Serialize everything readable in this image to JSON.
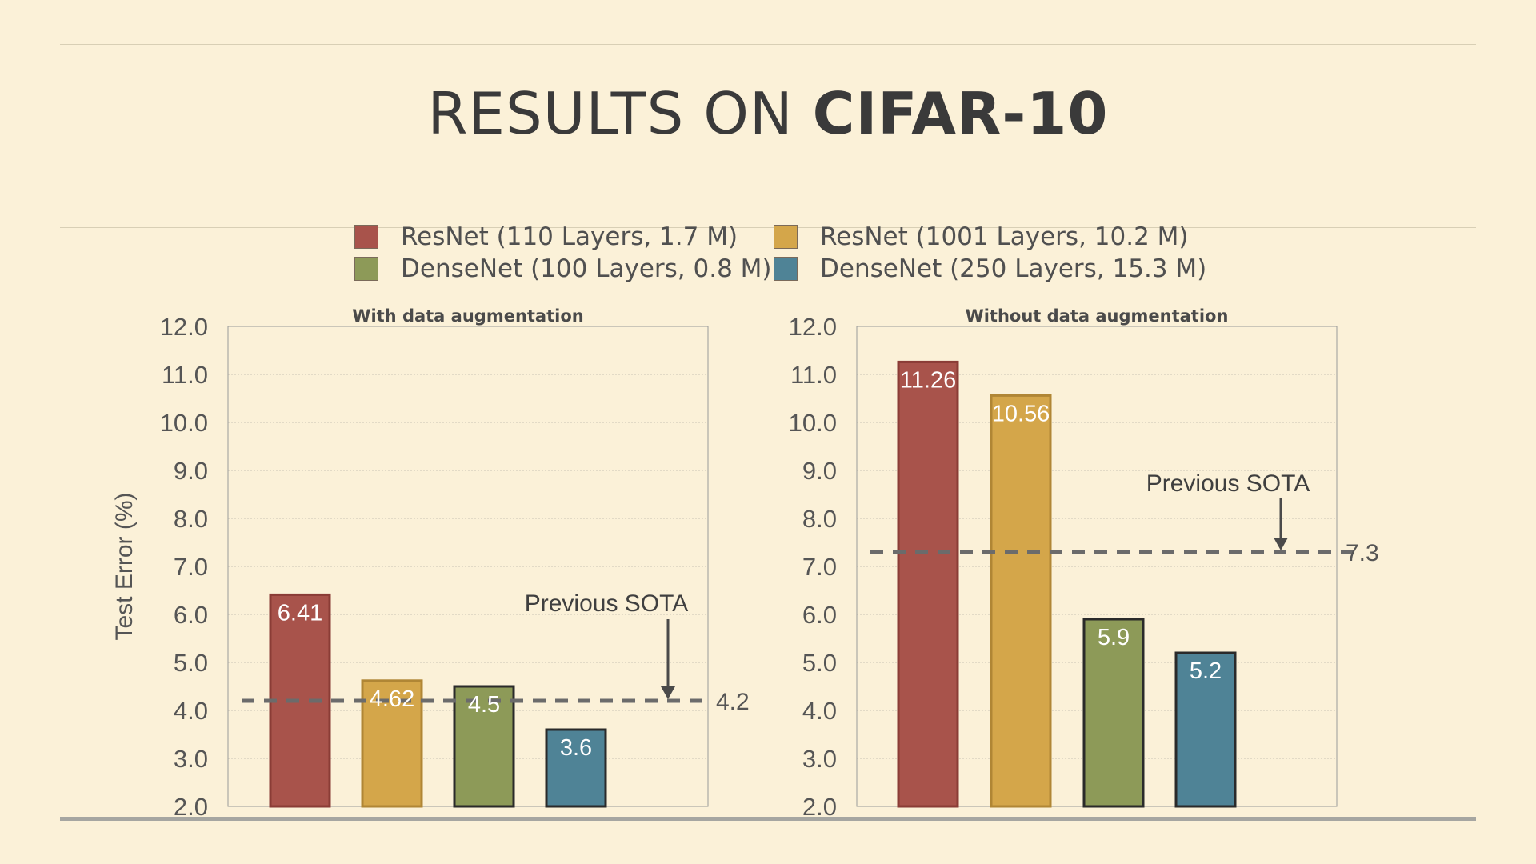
{
  "title": {
    "light": "RESULTS ON",
    "bold": "CIFAR-10"
  },
  "legend": [
    {
      "label": "ResNet (110 Layers, 1.7 M)",
      "color": "#a8534b"
    },
    {
      "label": "ResNet (1001 Layers, 10.2 M)",
      "color": "#d4a64a"
    },
    {
      "label": "DenseNet (100 Layers, 0.8 M)",
      "color": "#8d9a58"
    },
    {
      "label": "DenseNet (250 Layers, 15.3 M)",
      "color": "#4f8396"
    }
  ],
  "chart_data": [
    {
      "type": "bar",
      "title": "With data augmentation",
      "ylabel": "Test Error (%)",
      "xlabel": "",
      "ylim": [
        2.0,
        12.0
      ],
      "yticks": [
        "2.0",
        "3.0",
        "4.0",
        "5.0",
        "6.0",
        "7.0",
        "8.0",
        "9.0",
        "10.0",
        "11.0",
        "12.0"
      ],
      "grid": true,
      "series": [
        {
          "name": "ResNet (110 Layers, 1.7 M)",
          "value": 6.41,
          "label": "6.41",
          "color": "#a8534b",
          "outline": "#8a3c36"
        },
        {
          "name": "ResNet (1001 Layers, 10.2 M)",
          "value": 4.62,
          "label": "4.62",
          "color": "#d4a64a",
          "outline": "#b08635"
        },
        {
          "name": "DenseNet (100 Layers, 0.8 M)",
          "value": 4.5,
          "label": "4.5",
          "color": "#8d9a58",
          "outline": "#2a2a2a"
        },
        {
          "name": "DenseNet (250 Layers, 15.3 M)",
          "value": 3.6,
          "label": "3.6",
          "color": "#4f8396",
          "outline": "#2a2a2a"
        }
      ],
      "reference": {
        "value": 4.2,
        "label": "4.2",
        "annotation": "Previous SOTA"
      }
    },
    {
      "type": "bar",
      "title": "Without data augmentation",
      "ylabel": "",
      "xlabel": "",
      "ylim": [
        2.0,
        12.0
      ],
      "yticks": [
        "2.0",
        "3.0",
        "4.0",
        "5.0",
        "6.0",
        "7.0",
        "8.0",
        "9.0",
        "10.0",
        "11.0",
        "12.0"
      ],
      "grid": true,
      "series": [
        {
          "name": "ResNet (110 Layers, 1.7 M)",
          "value": 11.26,
          "label": "11.26",
          "color": "#a8534b",
          "outline": "#8a3c36"
        },
        {
          "name": "ResNet (1001 Layers, 10.2 M)",
          "value": 10.56,
          "label": "10.56",
          "color": "#d4a64a",
          "outline": "#b08635"
        },
        {
          "name": "DenseNet (100 Layers, 0.8 M)",
          "value": 5.9,
          "label": "5.9",
          "color": "#8d9a58",
          "outline": "#2a2a2a"
        },
        {
          "name": "DenseNet (250 Layers, 15.3 M)",
          "value": 5.2,
          "label": "5.2",
          "color": "#4f8396",
          "outline": "#2a2a2a"
        }
      ],
      "reference": {
        "value": 7.3,
        "label": "7.3",
        "annotation": "Previous SOTA"
      }
    }
  ]
}
